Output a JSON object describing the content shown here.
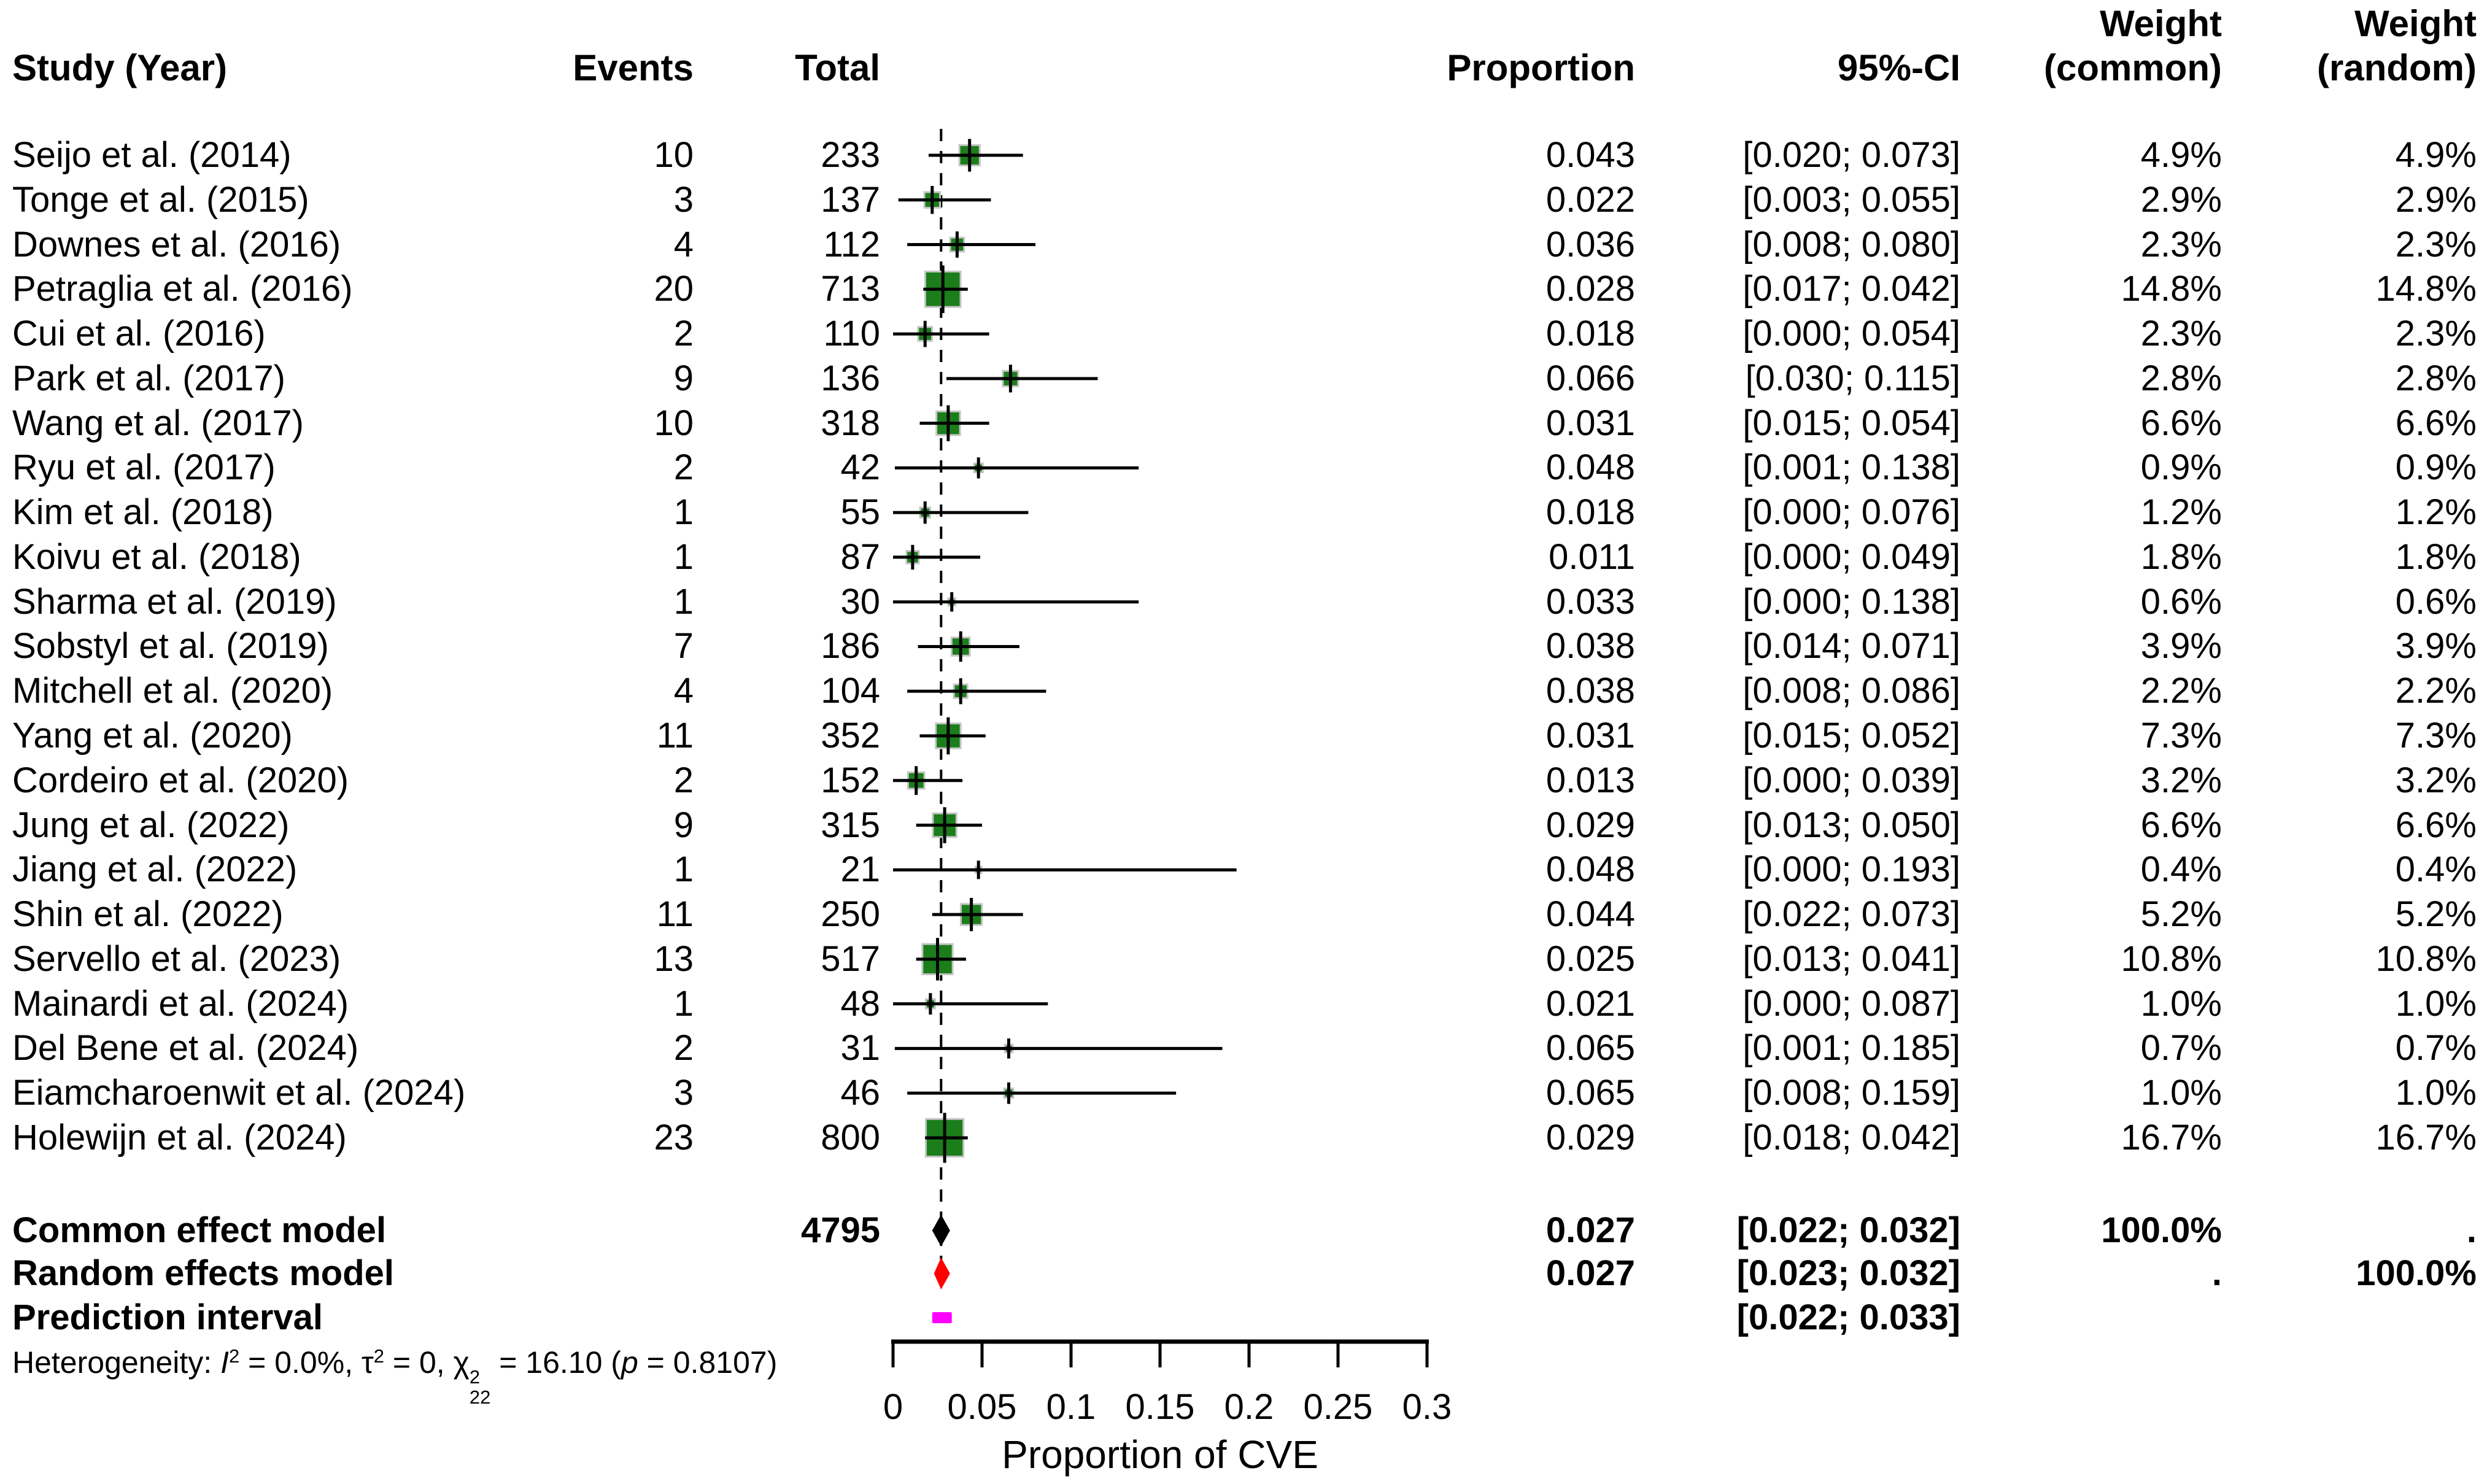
{
  "header": {
    "study": "Study (Year)",
    "events": "Events",
    "total": "Total",
    "proportion": "Proportion",
    "ci": "95%-CI",
    "weight_common": "Weight\n(common)",
    "weight_random": "Weight\n(random)"
  },
  "chart_data": {
    "type": "forest",
    "xlabel": "Proportion of CVE",
    "axis": {
      "min": 0,
      "max": 0.3,
      "ticks": [
        0,
        0.05,
        0.1,
        0.15,
        0.2,
        0.25,
        0.3
      ],
      "tick_labels": [
        "0",
        "0.05",
        "0.1",
        "0.15",
        "0.2",
        "0.25",
        "0.3"
      ],
      "pooled_line": 0.027,
      "xlabel": "Proportion of CVE"
    },
    "colors": {
      "square": "#1b7e1b",
      "square_border": "#c6c6c6",
      "ci_line": "#000000",
      "common_diamond": "#000000",
      "random_diamond": "#ff0000",
      "prediction_bar": "#ff00ff",
      "dashed_line": "#000000"
    },
    "studies": [
      {
        "name": "Seijo et al. (2014)",
        "events": "10",
        "total": "233",
        "proportion": "0.043",
        "ci_text": "[0.020; 0.073]",
        "est": 0.043,
        "lower": 0.02,
        "upper": 0.073,
        "weight": 4.9,
        "weight_common": "4.9%",
        "weight_random": "4.9%"
      },
      {
        "name": "Tonge et al. (2015)",
        "events": "3",
        "total": "137",
        "proportion": "0.022",
        "ci_text": "[0.003; 0.055]",
        "est": 0.022,
        "lower": 0.003,
        "upper": 0.055,
        "weight": 2.9,
        "weight_common": "2.9%",
        "weight_random": "2.9%"
      },
      {
        "name": "Downes et al. (2016)",
        "events": "4",
        "total": "112",
        "proportion": "0.036",
        "ci_text": "[0.008; 0.080]",
        "est": 0.036,
        "lower": 0.008,
        "upper": 0.08,
        "weight": 2.3,
        "weight_common": "2.3%",
        "weight_random": "2.3%"
      },
      {
        "name": "Petraglia et al. (2016)",
        "events": "20",
        "total": "713",
        "proportion": "0.028",
        "ci_text": "[0.017; 0.042]",
        "est": 0.028,
        "lower": 0.017,
        "upper": 0.042,
        "weight": 14.8,
        "weight_common": "14.8%",
        "weight_random": "14.8%"
      },
      {
        "name": "Cui et al. (2016)",
        "events": "2",
        "total": "110",
        "proportion": "0.018",
        "ci_text": "[0.000; 0.054]",
        "est": 0.018,
        "lower": 0.0,
        "upper": 0.054,
        "weight": 2.3,
        "weight_common": "2.3%",
        "weight_random": "2.3%"
      },
      {
        "name": "Park et al. (2017)",
        "events": "9",
        "total": "136",
        "proportion": "0.066",
        "ci_text": "[0.030; 0.115]",
        "est": 0.066,
        "lower": 0.03,
        "upper": 0.115,
        "weight": 2.8,
        "weight_common": "2.8%",
        "weight_random": "2.8%"
      },
      {
        "name": "Wang et al. (2017)",
        "events": "10",
        "total": "318",
        "proportion": "0.031",
        "ci_text": "[0.015; 0.054]",
        "est": 0.031,
        "lower": 0.015,
        "upper": 0.054,
        "weight": 6.6,
        "weight_common": "6.6%",
        "weight_random": "6.6%"
      },
      {
        "name": "Ryu et al. (2017)",
        "events": "2",
        "total": "42",
        "proportion": "0.048",
        "ci_text": "[0.001; 0.138]",
        "est": 0.048,
        "lower": 0.001,
        "upper": 0.138,
        "weight": 0.9,
        "weight_common": "0.9%",
        "weight_random": "0.9%"
      },
      {
        "name": "Kim et al. (2018)",
        "events": "1",
        "total": "55",
        "proportion": "0.018",
        "ci_text": "[0.000; 0.076]",
        "est": 0.018,
        "lower": 0.0,
        "upper": 0.076,
        "weight": 1.2,
        "weight_common": "1.2%",
        "weight_random": "1.2%"
      },
      {
        "name": "Koivu et al. (2018)",
        "events": "1",
        "total": "87",
        "proportion": "0.011",
        "ci_text": "[0.000; 0.049]",
        "est": 0.011,
        "lower": 0.0,
        "upper": 0.049,
        "weight": 1.8,
        "weight_common": "1.8%",
        "weight_random": "1.8%"
      },
      {
        "name": "Sharma et al. (2019)",
        "events": "1",
        "total": "30",
        "proportion": "0.033",
        "ci_text": "[0.000; 0.138]",
        "est": 0.033,
        "lower": 0.0,
        "upper": 0.138,
        "weight": 0.6,
        "weight_common": "0.6%",
        "weight_random": "0.6%"
      },
      {
        "name": "Sobstyl et al. (2019)",
        "events": "7",
        "total": "186",
        "proportion": "0.038",
        "ci_text": "[0.014; 0.071]",
        "est": 0.038,
        "lower": 0.014,
        "upper": 0.071,
        "weight": 3.9,
        "weight_common": "3.9%",
        "weight_random": "3.9%"
      },
      {
        "name": "Mitchell et al. (2020)",
        "events": "4",
        "total": "104",
        "proportion": "0.038",
        "ci_text": "[0.008; 0.086]",
        "est": 0.038,
        "lower": 0.008,
        "upper": 0.086,
        "weight": 2.2,
        "weight_common": "2.2%",
        "weight_random": "2.2%"
      },
      {
        "name": "Yang et al. (2020)",
        "events": "11",
        "total": "352",
        "proportion": "0.031",
        "ci_text": "[0.015; 0.052]",
        "est": 0.031,
        "lower": 0.015,
        "upper": 0.052,
        "weight": 7.3,
        "weight_common": "7.3%",
        "weight_random": "7.3%"
      },
      {
        "name": "Cordeiro et al. (2020)",
        "events": "2",
        "total": "152",
        "proportion": "0.013",
        "ci_text": "[0.000; 0.039]",
        "est": 0.013,
        "lower": 0.0,
        "upper": 0.039,
        "weight": 3.2,
        "weight_common": "3.2%",
        "weight_random": "3.2%"
      },
      {
        "name": "Jung et al. (2022)",
        "events": "9",
        "total": "315",
        "proportion": "0.029",
        "ci_text": "[0.013; 0.050]",
        "est": 0.029,
        "lower": 0.013,
        "upper": 0.05,
        "weight": 6.6,
        "weight_common": "6.6%",
        "weight_random": "6.6%"
      },
      {
        "name": "Jiang et al. (2022)",
        "events": "1",
        "total": "21",
        "proportion": "0.048",
        "ci_text": "[0.000; 0.193]",
        "est": 0.048,
        "lower": 0.0,
        "upper": 0.193,
        "weight": 0.4,
        "weight_common": "0.4%",
        "weight_random": "0.4%"
      },
      {
        "name": "Shin et al. (2022)",
        "events": "11",
        "total": "250",
        "proportion": "0.044",
        "ci_text": "[0.022; 0.073]",
        "est": 0.044,
        "lower": 0.022,
        "upper": 0.073,
        "weight": 5.2,
        "weight_common": "5.2%",
        "weight_random": "5.2%"
      },
      {
        "name": "Servello et al. (2023)",
        "events": "13",
        "total": "517",
        "proportion": "0.025",
        "ci_text": "[0.013; 0.041]",
        "est": 0.025,
        "lower": 0.013,
        "upper": 0.041,
        "weight": 10.8,
        "weight_common": "10.8%",
        "weight_random": "10.8%"
      },
      {
        "name": "Mainardi et al. (2024)",
        "events": "1",
        "total": "48",
        "proportion": "0.021",
        "ci_text": "[0.000; 0.087]",
        "est": 0.021,
        "lower": 0.0,
        "upper": 0.087,
        "weight": 1.0,
        "weight_common": "1.0%",
        "weight_random": "1.0%"
      },
      {
        "name": "Del Bene et al. (2024)",
        "events": "2",
        "total": "31",
        "proportion": "0.065",
        "ci_text": "[0.001; 0.185]",
        "est": 0.065,
        "lower": 0.001,
        "upper": 0.185,
        "weight": 0.7,
        "weight_common": "0.7%",
        "weight_random": "0.7%"
      },
      {
        "name": "Eiamcharoenwit et al. (2024)",
        "events": "3",
        "total": "46",
        "proportion": "0.065",
        "ci_text": "[0.008; 0.159]",
        "est": 0.065,
        "lower": 0.008,
        "upper": 0.159,
        "weight": 1.0,
        "weight_common": "1.0%",
        "weight_random": "1.0%"
      },
      {
        "name": "Holewijn et al. (2024)",
        "events": "23",
        "total": "800",
        "proportion": "0.029",
        "ci_text": "[0.018; 0.042]",
        "est": 0.029,
        "lower": 0.018,
        "upper": 0.042,
        "weight": 16.7,
        "weight_common": "16.7%",
        "weight_random": "16.7%"
      }
    ],
    "summaries": [
      {
        "label": "Common effect model",
        "total": "4795",
        "proportion": "0.027",
        "ci_text": "[0.022; 0.032]",
        "est": 0.027,
        "lower": 0.022,
        "upper": 0.032,
        "weight_common": "100.0%",
        "weight_random": ".",
        "marker": "diamond",
        "color_key": "common_diamond"
      },
      {
        "label": "Random effects model",
        "proportion": "0.027",
        "ci_text": "[0.023; 0.032]",
        "est": 0.027,
        "lower": 0.023,
        "upper": 0.032,
        "weight_common": ".",
        "weight_random": "100.0%",
        "marker": "diamond",
        "color_key": "random_diamond"
      },
      {
        "label": "Prediction interval",
        "ci_text": "[0.022; 0.033]",
        "lower": 0.022,
        "upper": 0.033,
        "marker": "bar",
        "color_key": "prediction_bar"
      }
    ],
    "heterogeneity_segments": [
      {
        "text": "Heterogeneity: "
      },
      {
        "text": "I",
        "italic": true
      },
      {
        "text": "2",
        "sup": true
      },
      {
        "text": " = 0.0%, "
      },
      {
        "text": "τ"
      },
      {
        "text": "2",
        "sup": true
      },
      {
        "text": " = 0, "
      },
      {
        "text": "χ"
      },
      {
        "supsub": {
          "sup": "2",
          "sub": "22"
        }
      },
      {
        "text": " = 16.10 ("
      },
      {
        "text": "p",
        "italic": true
      },
      {
        "text": " = 0.8107)"
      }
    ]
  }
}
